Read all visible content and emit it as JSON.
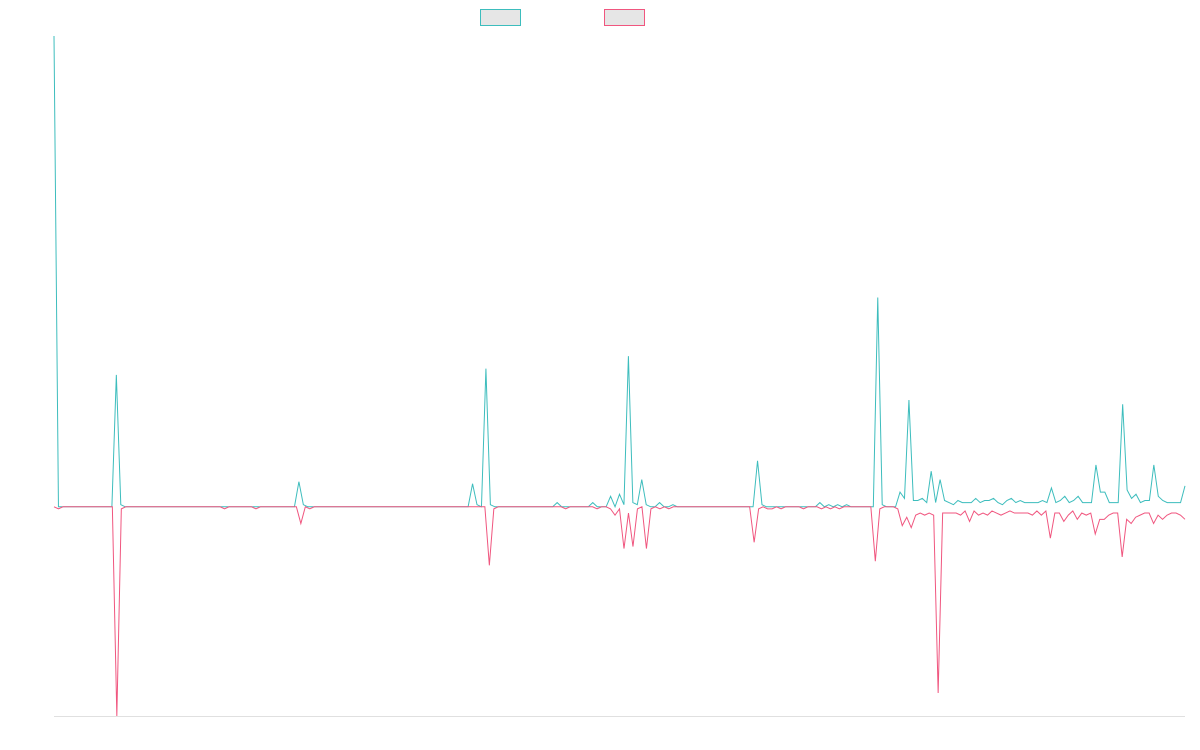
{
  "chart_data": {
    "type": "line",
    "title": "",
    "xlabel": "",
    "ylabel": "",
    "grid": false,
    "legend": "top-center",
    "ylim": [
      -1.0,
      2.25
    ],
    "colors": {
      "series_1": "#3dbdbd",
      "series_2": "#f0567f",
      "legend_fill": "#e6e6e6",
      "axis": "#e0e0e0"
    },
    "series": [
      {
        "values": [
          2.25,
          0,
          0,
          0,
          0,
          0,
          0,
          0,
          0,
          0,
          0,
          0,
          0,
          0,
          0.63,
          0.01,
          0,
          0,
          0,
          0,
          0,
          0,
          0,
          0,
          0,
          0,
          0,
          0,
          0,
          0,
          0,
          0,
          0,
          0,
          0,
          0,
          0,
          0,
          0,
          0,
          0,
          0,
          0,
          0,
          0,
          0,
          0,
          0,
          0,
          0,
          0,
          0,
          0,
          0,
          0,
          0.12,
          0.01,
          0,
          0,
          0,
          0,
          0,
          0,
          0,
          0,
          0,
          0,
          0,
          0,
          0,
          0,
          0,
          0,
          0,
          0,
          0,
          0,
          0,
          0,
          0,
          0,
          0,
          0,
          0,
          0,
          0,
          0,
          0,
          0,
          0,
          0,
          0,
          0,
          0,
          0.11,
          0.01,
          0,
          0.66,
          0.01,
          0,
          0,
          0,
          0,
          0,
          0,
          0,
          0,
          0,
          0,
          0,
          0,
          0,
          0,
          0.02,
          0,
          0,
          0,
          0,
          0,
          0,
          0,
          0.02,
          0,
          0,
          0,
          0.05,
          0,
          0.06,
          0.01,
          0.72,
          0.02,
          0.01,
          0.13,
          0.01,
          0,
          0,
          0.02,
          0,
          0,
          0.01,
          0,
          0,
          0,
          0,
          0,
          0,
          0,
          0,
          0,
          0,
          0,
          0,
          0,
          0,
          0,
          0,
          0,
          0,
          0.22,
          0.01,
          0,
          0,
          0,
          0,
          0,
          0,
          0,
          0,
          0,
          0,
          0,
          0,
          0.02,
          0,
          0.01,
          0,
          0.01,
          0,
          0.01,
          0,
          0,
          0,
          0,
          0,
          0,
          1.0,
          0.01,
          0,
          0,
          0,
          0.07,
          0.04,
          0.51,
          0.03,
          0.03,
          0.04,
          0.02,
          0.17,
          0.02,
          0.13,
          0.03,
          0.02,
          0.01,
          0.03,
          0.02,
          0.02,
          0.02,
          0.04,
          0.02,
          0.03,
          0.03,
          0.04,
          0.02,
          0.01,
          0.03,
          0.04,
          0.02,
          0.03,
          0.02,
          0.02,
          0.02,
          0.02,
          0.03,
          0.02,
          0.09,
          0.02,
          0.03,
          0.05,
          0.02,
          0.03,
          0.05,
          0.02,
          0.02,
          0.02,
          0.2,
          0.07,
          0.07,
          0.02,
          0.02,
          0.02,
          0.49,
          0.08,
          0.04,
          0.06,
          0.02,
          0.03,
          0.03,
          0.2,
          0.05,
          0.03,
          0.02,
          0.02,
          0.02,
          0.02,
          0.1
        ],
        "color": "#3dbdbd"
      },
      {
        "values": [
          0,
          -0.01,
          0,
          0,
          0,
          0,
          0,
          0,
          0,
          0,
          0,
          0,
          0,
          0,
          -1.0,
          -0.01,
          0,
          0,
          0,
          0,
          0,
          0,
          0,
          0,
          0,
          0,
          0,
          0,
          0,
          0,
          0,
          0,
          0,
          0,
          0,
          0,
          0,
          0,
          -0.01,
          0,
          0,
          0,
          0,
          0,
          0,
          -0.01,
          0,
          0,
          0,
          0,
          0,
          0,
          0,
          0,
          0,
          -0.08,
          0,
          -0.01,
          0,
          0,
          0,
          0,
          0,
          0,
          0,
          0,
          0,
          0,
          0,
          0,
          0,
          0,
          0,
          0,
          0,
          0,
          0,
          0,
          0,
          0,
          0,
          0,
          0,
          0,
          0,
          0,
          0,
          0,
          0,
          0,
          0,
          0,
          0,
          0,
          0,
          0,
          0,
          -0.28,
          -0.01,
          0,
          0,
          0,
          0,
          0,
          0,
          0,
          0,
          0,
          0,
          0,
          0,
          0,
          0,
          0,
          -0.01,
          0,
          0,
          0,
          0,
          0,
          0,
          -0.01,
          0,
          0,
          -0.01,
          -0.04,
          -0.01,
          -0.2,
          -0.03,
          -0.19,
          -0.01,
          0,
          -0.2,
          -0.01,
          0,
          -0.01,
          0,
          -0.01,
          0,
          0,
          0,
          0,
          0,
          0,
          0,
          0,
          0,
          0,
          0,
          0,
          0,
          0,
          0,
          0,
          0,
          0,
          -0.17,
          -0.01,
          0,
          -0.01,
          -0.01,
          0,
          -0.01,
          0,
          0,
          0,
          0,
          -0.01,
          0,
          0,
          0,
          -0.01,
          0,
          -0.01,
          0,
          -0.01,
          0,
          0,
          0,
          0,
          0,
          0,
          0,
          -0.26,
          -0.01,
          0,
          0,
          0,
          -0.01,
          -0.09,
          -0.05,
          -0.1,
          -0.04,
          -0.03,
          -0.04,
          -0.03,
          -0.04,
          -0.89,
          -0.03,
          -0.03,
          -0.03,
          -0.03,
          -0.04,
          -0.02,
          -0.07,
          -0.02,
          -0.04,
          -0.03,
          -0.04,
          -0.02,
          -0.03,
          -0.04,
          -0.03,
          -0.02,
          -0.03,
          -0.03,
          -0.03,
          -0.03,
          -0.04,
          -0.02,
          -0.04,
          -0.02,
          -0.15,
          -0.03,
          -0.03,
          -0.07,
          -0.04,
          -0.02,
          -0.06,
          -0.03,
          -0.04,
          -0.03,
          -0.13,
          -0.06,
          -0.06,
          -0.04,
          -0.03,
          -0.03,
          -0.24,
          -0.06,
          -0.08,
          -0.05,
          -0.04,
          -0.03,
          -0.03,
          -0.08,
          -0.04,
          -0.06,
          -0.04,
          -0.03,
          -0.03,
          -0.04,
          -0.06
        ],
        "color": "#f0567f"
      }
    ]
  }
}
